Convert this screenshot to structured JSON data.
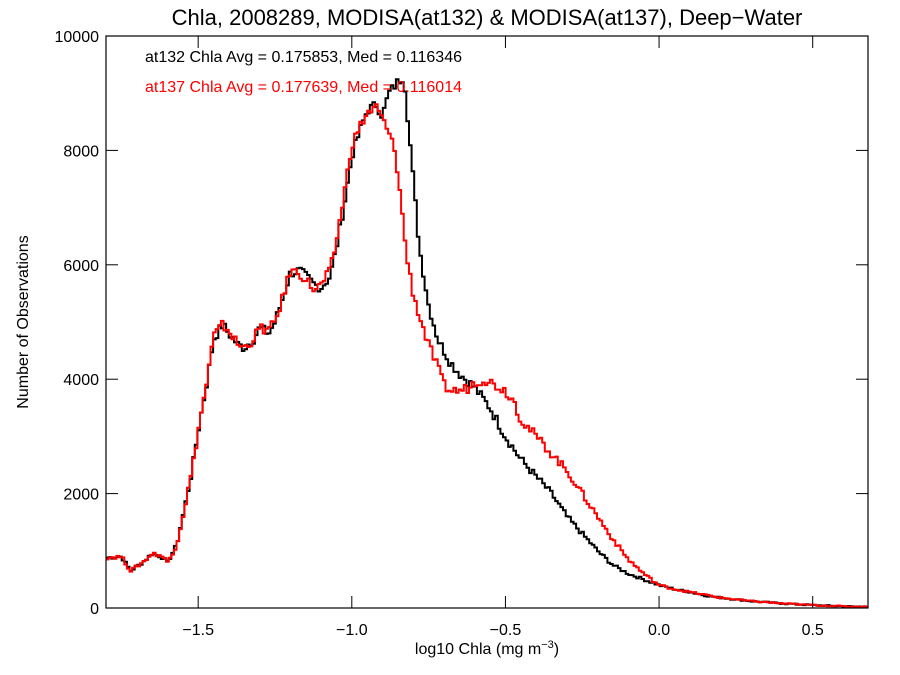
{
  "chart_data": {
    "type": "line",
    "title": "Chla, 2008289, MODISA(at132) & MODISA(at137), Deep−Water",
    "xlabel": "log10 Chla (mg m",
    "xlabel_sup": "−3",
    "xlabel_end": ")",
    "ylabel": "Number of Observations",
    "xlim": [
      -1.8,
      0.68
    ],
    "ylim": [
      0,
      10000
    ],
    "x_ticks": [
      -1.5,
      -1.0,
      -0.5,
      0.0,
      0.5
    ],
    "x_tick_labels": [
      "−1.5",
      "−1.0",
      "−0.5",
      "0.0",
      "0.5"
    ],
    "y_ticks": [
      0,
      2000,
      4000,
      6000,
      8000,
      10000
    ],
    "y_tick_labels": [
      "0",
      "2000",
      "4000",
      "6000",
      "8000",
      "10000"
    ],
    "grid": false,
    "annotations": [
      {
        "text": "at132 Chla Avg = 0.175853, Med = 0.116346",
        "color": "#000000"
      },
      {
        "text": "at137 Chla Avg = 0.177639, Med = 0.116014",
        "color": "#ff0000"
      }
    ],
    "series": [
      {
        "color": "#000000",
        "x": [
          -1.8,
          -1.75,
          -1.72,
          -1.68,
          -1.65,
          -1.62,
          -1.6,
          -1.57,
          -1.55,
          -1.52,
          -1.5,
          -1.47,
          -1.45,
          -1.42,
          -1.4,
          -1.37,
          -1.35,
          -1.32,
          -1.3,
          -1.27,
          -1.25,
          -1.22,
          -1.2,
          -1.17,
          -1.15,
          -1.12,
          -1.1,
          -1.07,
          -1.05,
          -1.02,
          -1.0,
          -0.97,
          -0.95,
          -0.92,
          -0.9,
          -0.88,
          -0.85,
          -0.83,
          -0.82,
          -0.8,
          -0.78,
          -0.75,
          -0.72,
          -0.7,
          -0.68,
          -0.65,
          -0.62,
          -0.6,
          -0.55,
          -0.5,
          -0.45,
          -0.4,
          -0.35,
          -0.3,
          -0.25,
          -0.2,
          -0.15,
          -0.1,
          -0.05,
          0.0,
          0.05,
          0.1,
          0.15,
          0.2,
          0.3,
          0.4,
          0.5,
          0.6,
          0.68
        ],
        "y": [
          880,
          900,
          650,
          800,
          950,
          900,
          800,
          1100,
          1600,
          2400,
          3100,
          4000,
          4700,
          4950,
          4800,
          4600,
          4550,
          4700,
          4900,
          4800,
          5000,
          5500,
          5850,
          5900,
          5800,
          5650,
          5600,
          5800,
          6300,
          7200,
          7900,
          8400,
          8700,
          8800,
          8600,
          9000,
          9200,
          9300,
          8700,
          7500,
          6300,
          5300,
          4700,
          4500,
          4300,
          4100,
          3950,
          3850,
          3500,
          3000,
          2600,
          2300,
          2000,
          1600,
          1300,
          1000,
          750,
          600,
          500,
          400,
          330,
          280,
          220,
          180,
          120,
          80,
          50,
          30,
          20
        ]
      },
      {
        "color": "#ff0000",
        "x": [
          -1.8,
          -1.75,
          -1.72,
          -1.68,
          -1.65,
          -1.62,
          -1.6,
          -1.57,
          -1.55,
          -1.52,
          -1.5,
          -1.47,
          -1.45,
          -1.42,
          -1.4,
          -1.37,
          -1.35,
          -1.32,
          -1.3,
          -1.27,
          -1.25,
          -1.22,
          -1.2,
          -1.17,
          -1.15,
          -1.12,
          -1.1,
          -1.07,
          -1.05,
          -1.02,
          -1.0,
          -0.97,
          -0.95,
          -0.92,
          -0.9,
          -0.88,
          -0.86,
          -0.85,
          -0.84,
          -0.83,
          -0.82,
          -0.8,
          -0.78,
          -0.75,
          -0.72,
          -0.7,
          -0.68,
          -0.65,
          -0.62,
          -0.6,
          -0.57,
          -0.55,
          -0.5,
          -0.47,
          -0.45,
          -0.4,
          -0.35,
          -0.3,
          -0.25,
          -0.2,
          -0.15,
          -0.1,
          -0.05,
          0.0,
          0.05,
          0.1,
          0.15,
          0.2,
          0.3,
          0.4,
          0.5,
          0.6,
          0.68
        ],
        "y": [
          880,
          900,
          650,
          800,
          950,
          920,
          800,
          1100,
          1600,
          2400,
          3100,
          4000,
          4750,
          4950,
          4850,
          4600,
          4550,
          4700,
          4900,
          4850,
          5000,
          5500,
          5900,
          5850,
          5750,
          5550,
          5650,
          5900,
          6400,
          7400,
          8100,
          8450,
          8650,
          8750,
          8550,
          8300,
          8000,
          7600,
          7100,
          6600,
          6100,
          5500,
          5100,
          4600,
          4200,
          3900,
          3800,
          3800,
          3850,
          3950,
          4000,
          3950,
          3800,
          3600,
          3300,
          3000,
          2700,
          2400,
          2000,
          1600,
          1200,
          850,
          600,
          400,
          330,
          280,
          230,
          180,
          120,
          80,
          50,
          30,
          20
        ]
      }
    ]
  }
}
